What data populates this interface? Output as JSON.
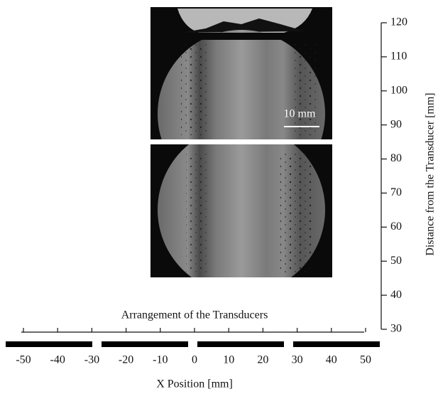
{
  "figure": {
    "y_axis": {
      "label": "Distance from the Transducer [mm]",
      "lim": [
        30,
        120
      ],
      "ticks": [
        30,
        40,
        50,
        60,
        70,
        80,
        90,
        100,
        110,
        120
      ]
    },
    "x_axis": {
      "label": "X Position [mm]",
      "lim": [
        -50,
        50
      ],
      "ticks": [
        -50,
        -40,
        -30,
        -20,
        -10,
        0,
        10,
        20,
        30,
        40,
        50
      ]
    },
    "transducer_label": "Arrangement of the Transducers",
    "scale_bar": "10 mm"
  }
}
